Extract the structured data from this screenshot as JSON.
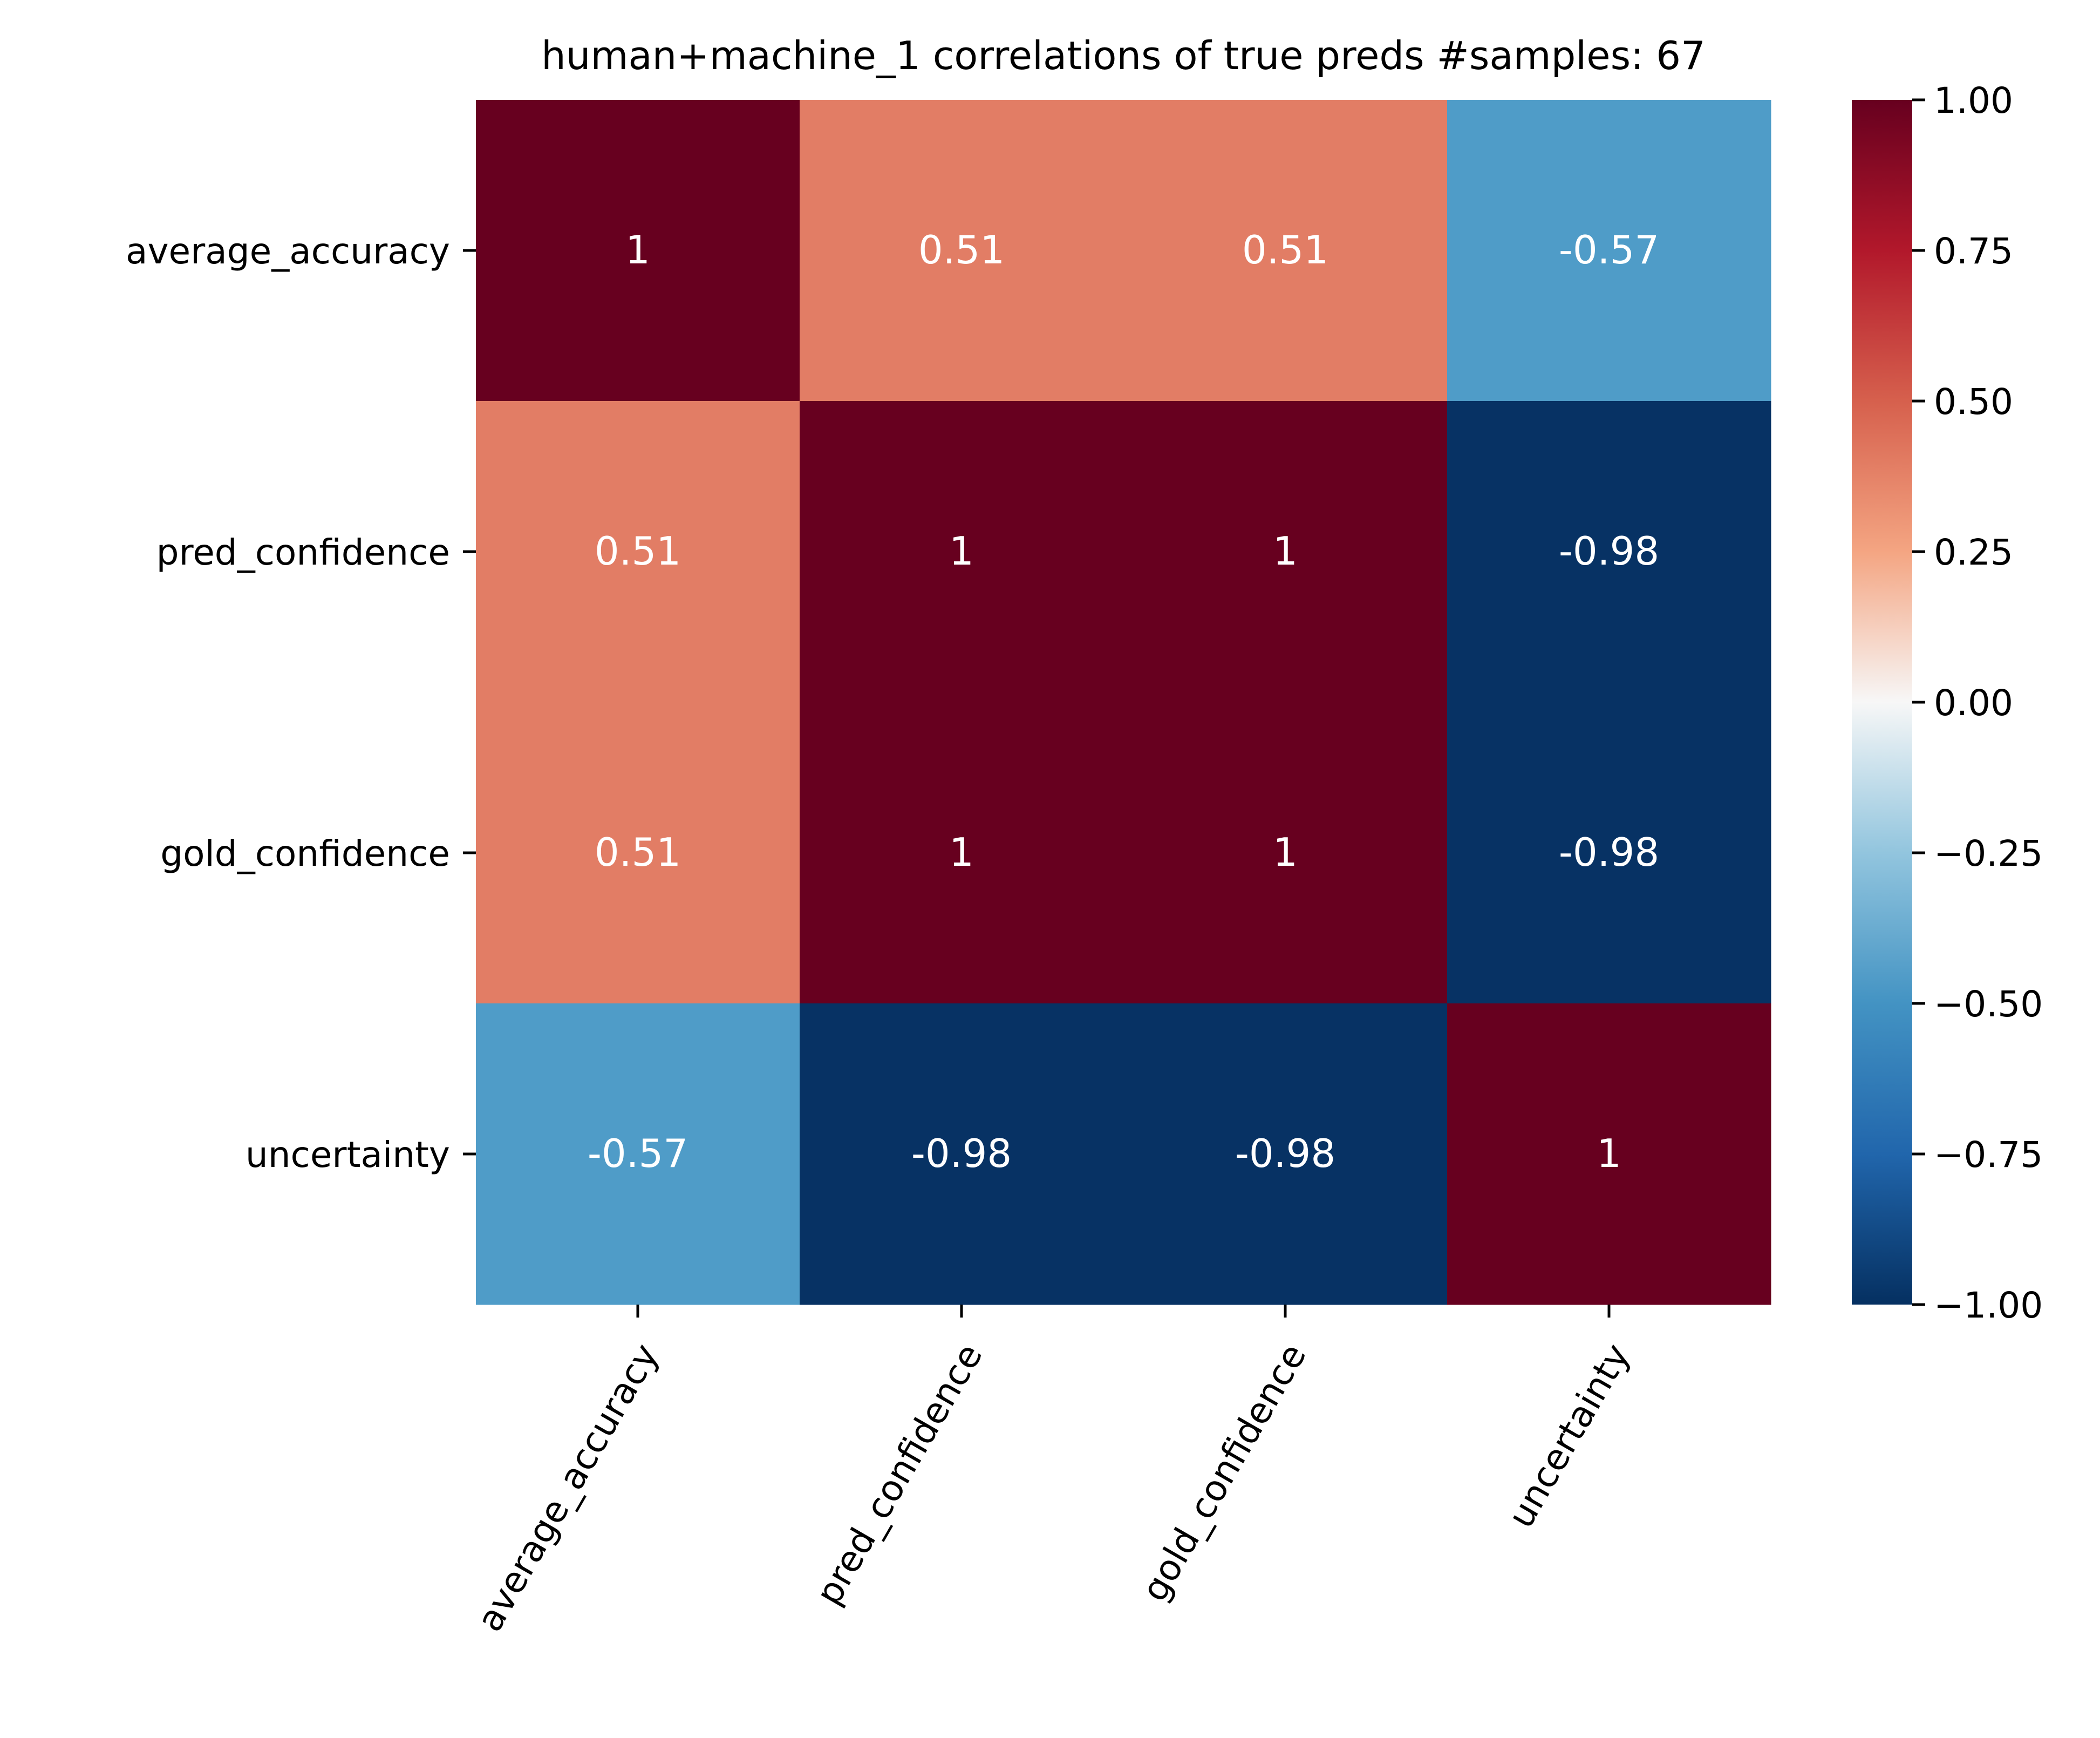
{
  "chart_data": {
    "type": "heatmap",
    "title": "human+machine_1 correlations of true preds #samples: 67",
    "xlabel": "",
    "ylabel": "",
    "rows": [
      "average_accuracy",
      "pred_confidence",
      "gold_confidence",
      "uncertainty"
    ],
    "columns": [
      "average_accuracy",
      "pred_confidence",
      "gold_confidence",
      "uncertainty"
    ],
    "values": [
      [
        1,
        0.51,
        0.51,
        -0.57
      ],
      [
        0.51,
        1,
        1,
        -0.98
      ],
      [
        0.51,
        1,
        1,
        -0.98
      ],
      [
        -0.57,
        -0.98,
        -0.98,
        1
      ]
    ],
    "cell_labels": [
      [
        "1",
        "0.51",
        "0.51",
        "-0.57"
      ],
      [
        "0.51",
        "1",
        "1",
        "-0.98"
      ],
      [
        "0.51",
        "1",
        "1",
        "-0.98"
      ],
      [
        "-0.57",
        "-0.98",
        "-0.98",
        "1"
      ]
    ],
    "colormap": "RdBu_r",
    "colorbar": {
      "range": [
        -1.0,
        1.0
      ],
      "ticks": [
        1.0,
        0.75,
        0.5,
        0.25,
        0.0,
        -0.25,
        -0.5,
        -0.75,
        -1.0
      ],
      "tick_labels": [
        "1.00",
        "0.75",
        "0.50",
        "0.25",
        "0.00",
        "−0.25",
        "−0.50",
        "−0.75",
        "−1.00"
      ]
    },
    "colors": {
      "pos_1": "#67001f",
      "pos_051": "#e27d65",
      "neg_057": "#4f9cc8",
      "neg_098": "#073264",
      "annotation_text": "#ffffff"
    }
  }
}
